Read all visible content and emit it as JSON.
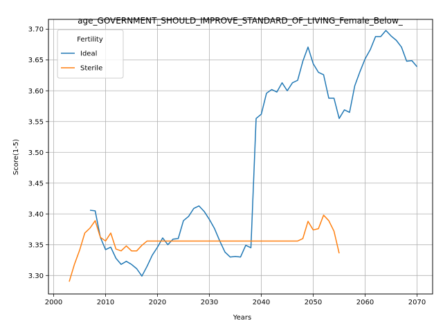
{
  "chart_data": {
    "type": "line",
    "title": "age_GOVERNMENT_SHOULD_IMPROVE_STANDARD_OF_LIVING_Female_Below_",
    "xlabel": "Years",
    "ylabel": "Score(1-5)",
    "xlim": [
      1999,
      2073
    ],
    "ylim": [
      3.27,
      3.716
    ],
    "xticks": [
      2000,
      2010,
      2020,
      2030,
      2040,
      2050,
      2060,
      2070
    ],
    "yticks": [
      3.3,
      3.35,
      3.4,
      3.45,
      3.5,
      3.55,
      3.6,
      3.65,
      3.7
    ],
    "grid": true,
    "legend": {
      "title": "Fertility",
      "placement": "upper-left"
    },
    "series": [
      {
        "name": "Ideal",
        "color": "#1f77b4",
        "x": [
          2007,
          2008,
          2009,
          2010,
          2011,
          2012,
          2013,
          2014,
          2015,
          2016,
          2017,
          2018,
          2019,
          2020,
          2021,
          2022,
          2023,
          2024,
          2025,
          2026,
          2027,
          2028,
          2029,
          2030,
          2031,
          2032,
          2033,
          2034,
          2035,
          2036,
          2037,
          2038,
          2039,
          2040,
          2041,
          2042,
          2043,
          2044,
          2045,
          2046,
          2047,
          2048,
          2049,
          2050,
          2051,
          2052,
          2053,
          2054,
          2055,
          2056,
          2057,
          2058,
          2059,
          2060,
          2061,
          2062,
          2063,
          2064,
          2065,
          2066,
          2067,
          2068,
          2069,
          2070
        ],
        "values": [
          3.406,
          3.405,
          3.362,
          3.342,
          3.346,
          3.328,
          3.318,
          3.323,
          3.318,
          3.311,
          3.299,
          3.315,
          3.333,
          3.346,
          3.361,
          3.35,
          3.359,
          3.36,
          3.389,
          3.396,
          3.409,
          3.413,
          3.404,
          3.391,
          3.376,
          3.356,
          3.338,
          3.33,
          3.331,
          3.33,
          3.349,
          3.345,
          3.555,
          3.562,
          3.596,
          3.602,
          3.598,
          3.613,
          3.6,
          3.613,
          3.617,
          3.648,
          3.671,
          3.644,
          3.63,
          3.626,
          3.588,
          3.588,
          3.555,
          3.569,
          3.565,
          3.608,
          3.631,
          3.652,
          3.667,
          3.688,
          3.688,
          3.698,
          3.689,
          3.682,
          3.671,
          3.648,
          3.649,
          3.639
        ]
      },
      {
        "name": "Sterile",
        "color": "#ff7f0e",
        "x": [
          2003,
          2004,
          2005,
          2006,
          2007,
          2008,
          2009,
          2010,
          2011,
          2012,
          2013,
          2014,
          2015,
          2016,
          2017,
          2018,
          2019,
          2020,
          2021,
          2022,
          2023,
          2024,
          2025,
          2026,
          2027,
          2028,
          2029,
          2030,
          2031,
          2032,
          2033,
          2034,
          2035,
          2036,
          2037,
          2038,
          2039,
          2040,
          2041,
          2042,
          2043,
          2044,
          2045,
          2046,
          2047,
          2048,
          2049,
          2050,
          2051,
          2052,
          2053,
          2054,
          2055
        ],
        "values": [
          3.29,
          3.318,
          3.341,
          3.369,
          3.377,
          3.389,
          3.362,
          3.356,
          3.369,
          3.343,
          3.34,
          3.348,
          3.34,
          3.34,
          3.349,
          3.356,
          3.356,
          3.356,
          3.356,
          3.356,
          3.356,
          3.356,
          3.356,
          3.356,
          3.356,
          3.356,
          3.356,
          3.356,
          3.356,
          3.356,
          3.356,
          3.356,
          3.356,
          3.356,
          3.356,
          3.356,
          3.356,
          3.356,
          3.356,
          3.356,
          3.356,
          3.356,
          3.356,
          3.356,
          3.356,
          3.36,
          3.388,
          3.374,
          3.376,
          3.398,
          3.389,
          3.372,
          3.336
        ]
      }
    ]
  }
}
